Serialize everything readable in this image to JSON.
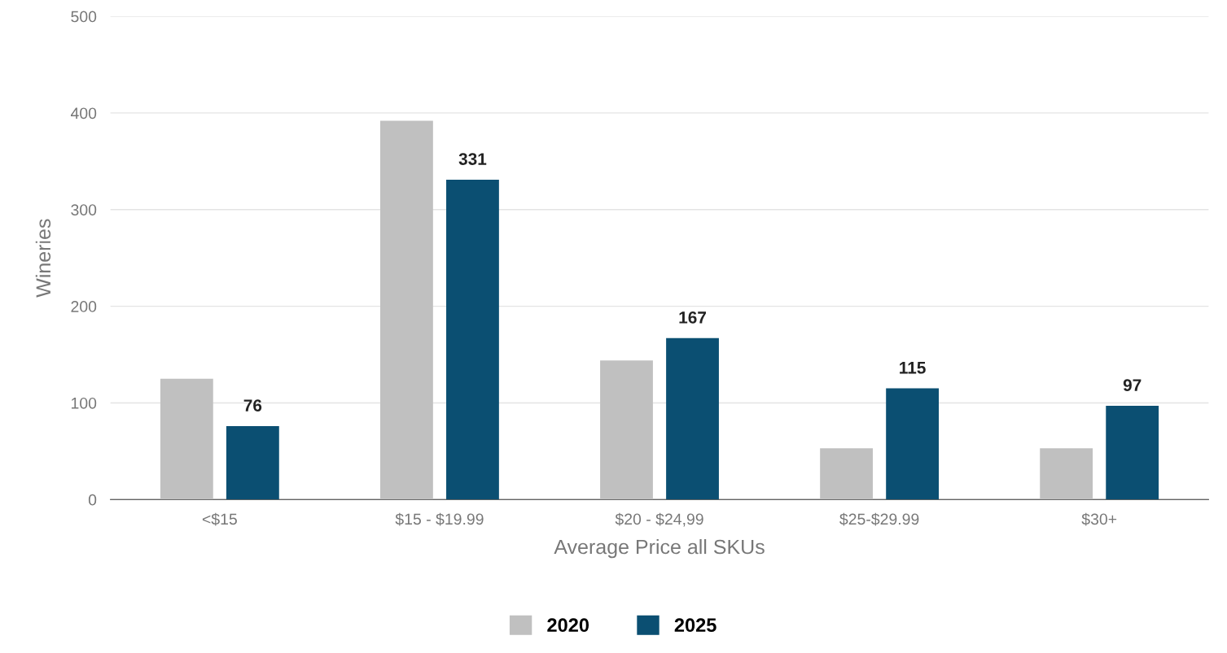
{
  "chart_data": {
    "type": "bar",
    "xlabel": "Average Price all SKUs",
    "ylabel": "Wineries",
    "categories": [
      "<$15",
      "$15 - $19.99",
      "$20 - $24,99",
      "$25-$29.99",
      "$30+"
    ],
    "series": [
      {
        "name": "2020",
        "color": "#c0c0c0",
        "values": [
          125,
          392,
          144,
          53,
          53
        ]
      },
      {
        "name": "2025",
        "color": "#0b4f72",
        "values": [
          76,
          331,
          167,
          115,
          97
        ],
        "value_labels": [
          "76",
          "331",
          "167",
          "115",
          "97"
        ]
      }
    ],
    "ylim": [
      0,
      500
    ],
    "yticks": [
      0,
      100,
      200,
      300,
      400,
      500
    ],
    "grid": "y",
    "legend": "bottom"
  }
}
